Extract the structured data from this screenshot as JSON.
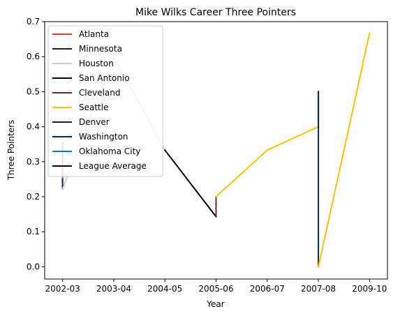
{
  "chart_data": {
    "type": "line",
    "title": "Mike Wilks  Career Three Pointers",
    "xlabel": "Year",
    "ylabel": "Three Pointers",
    "categories": [
      "2002-03",
      "2003-04",
      "2004-05",
      "2005-06",
      "2006-07",
      "2007-08",
      "2009-10"
    ],
    "ylim": [
      -0.035,
      0.7
    ],
    "yticks": [
      0.0,
      0.1,
      0.2,
      0.3,
      0.4,
      0.5,
      0.6,
      0.7
    ],
    "ytick_labels": [
      "0.0",
      "0.1",
      "0.2",
      "0.3",
      "0.4",
      "0.5",
      "0.6",
      "0.7"
    ],
    "legend_position": "upper-left",
    "grid": false,
    "series": [
      {
        "name": "Atlanta",
        "color": "#E03A3E",
        "points": [
          [
            0,
            0.353
          ],
          [
            0,
            0.222
          ]
        ]
      },
      {
        "name": "Minnesota",
        "color": "#0C2340",
        "points": [
          [
            0,
            0.222
          ],
          [
            0,
            0.25
          ]
        ]
      },
      {
        "name": "Houston",
        "color": "#C4CED4",
        "points": [
          [
            0,
            0.222
          ],
          [
            1,
            0.6
          ],
          [
            2,
            0.333
          ]
        ]
      },
      {
        "name": "San Antonio",
        "color": "#000000",
        "points": [
          [
            2,
            0.333
          ],
          [
            3,
            0.143
          ]
        ]
      },
      {
        "name": "Cleveland",
        "color": "#6F263D",
        "points": [
          [
            3,
            0.143
          ],
          [
            3,
            0.2
          ]
        ]
      },
      {
        "name": "Seattle",
        "color": "#FFC200",
        "points": [
          [
            3,
            0.2
          ],
          [
            4,
            0.333
          ],
          [
            5,
            0.4
          ]
        ]
      },
      {
        "name": "Denver",
        "color": "#0E2240",
        "points": [
          [
            5,
            0.4
          ],
          [
            5,
            0.5
          ]
        ]
      },
      {
        "name": "Washington",
        "color": "#002B5C",
        "points": [
          [
            5,
            0.5
          ],
          [
            5,
            0.0
          ]
        ]
      },
      {
        "name": "Oklahoma City",
        "color": "#007AC1",
        "points": []
      },
      {
        "name": "Seattle",
        "color": "#FFC200",
        "points": [
          [
            5,
            0.0
          ],
          [
            6,
            0.667
          ]
        ]
      }
    ],
    "legend": [
      {
        "name": "Atlanta",
        "color": "#E03A3E"
      },
      {
        "name": "Minnesota",
        "color": "#0C2340"
      },
      {
        "name": "Houston",
        "color": "#C4CED4"
      },
      {
        "name": "San Antonio",
        "color": "#000000"
      },
      {
        "name": "Cleveland",
        "color": "#6F263D"
      },
      {
        "name": "Seattle",
        "color": "#FFC200"
      },
      {
        "name": "Denver",
        "color": "#0E2240"
      },
      {
        "name": "Washington",
        "color": "#002B5C"
      },
      {
        "name": "Oklahoma City",
        "color": "#007AC1"
      },
      {
        "name": "League Average",
        "color": "#000000"
      }
    ]
  }
}
